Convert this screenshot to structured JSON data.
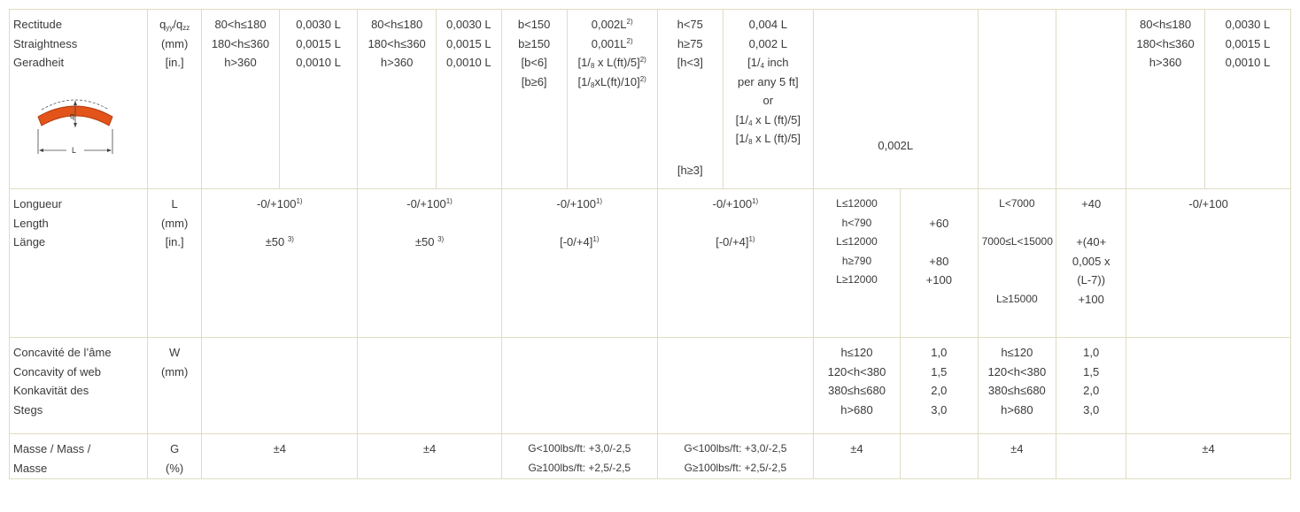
{
  "straightness": {
    "labels": [
      "Rectitude",
      "Straightness",
      "Geradheit"
    ],
    "symbol": "qyy/qzz",
    "symbol_main": "q",
    "symbol_sub1": "yy",
    "symbol_sub2": "zz",
    "units": [
      "(mm)",
      "[in.]"
    ],
    "diagram_q": "q",
    "diagram_L": "L",
    "g1_left": [
      "80<h≤180",
      "180<h≤360",
      "h>360"
    ],
    "g1_right": [
      "0,0030 L",
      "0,0015 L",
      "0,0010 L"
    ],
    "g2_left": [
      "80<h≤180",
      "180<h≤360",
      "h>360"
    ],
    "g2_right": [
      "0,0030 L",
      "0,0015 L",
      "0,0010 L"
    ],
    "g3_left": [
      "b<150",
      "b≥150",
      "[b<6]",
      "[b≥6]"
    ],
    "g3_right": {
      "a": "0,002L",
      "a_sup": "2)",
      "b": "0,001L",
      "b_sup": "2)",
      "c_pre": "[1/",
      "c_sub": "8",
      "c_mid": " x L(ft)/5]",
      "c_sup": "2)",
      "d_pre": "[1/",
      "d_sub": "8",
      "d_mid": "xL(ft)/10]",
      "d_sup": "2)"
    },
    "g4_left": [
      "h<75",
      "h≥75",
      "[h<3]",
      "[h≥3]"
    ],
    "g4_right": {
      "a": "0,004 L",
      "b": "0,002 L",
      "c_pre": "[1/",
      "c_sub": "4",
      "c_mid": " inch",
      "d": "per any 5 ft]",
      "e": "or",
      "f_pre": "[1/",
      "f_sub": "4",
      "f_mid": " x L (ft)/5]",
      "g_pre": "[1/",
      "g_sub": "8",
      "g_mid": " x L (ft)/5]"
    },
    "g5": "0,002L",
    "g7_left": [
      "80<h≤180",
      "180<h≤360",
      "h>360"
    ],
    "g7_right": [
      "0,0030 L",
      "0,0015 L",
      "0,0010 L"
    ]
  },
  "length": {
    "labels": [
      "Longueur",
      "Length",
      "Länge"
    ],
    "symbol": "L",
    "units": [
      "(mm)",
      "[in.]"
    ],
    "g1_top": "-0/+100",
    "g1_top_sup": "1)",
    "g1_bot": "±50",
    "g1_bot_sup": "3)",
    "g2_top": "-0/+100",
    "g2_top_sup": "1)",
    "g2_bot": "±50",
    "g2_bot_sup": "3)",
    "g3_top": "-0/+100",
    "g3_top_sup": "1)",
    "g3_bot": "[-0/+4]",
    "g3_bot_sup": "1)",
    "g4_top": "-0/+100",
    "g4_top_sup": "1)",
    "g4_bot": "[-0/+4]",
    "g4_bot_sup": "1)",
    "g5_left": [
      "L≤12000",
      "h<790",
      "L≤12000",
      "h≥790",
      "L≥12000"
    ],
    "g5_right": [
      "",
      "+60",
      "",
      "+80",
      "+100"
    ],
    "g6_left": [
      "L<7000",
      "",
      "7000≤L<15000",
      "",
      "",
      "L≥15000"
    ],
    "g6_right": [
      "+40",
      "",
      "+(40+",
      "0,005 x",
      "(L-7))",
      "+100"
    ],
    "g7": "-0/+100"
  },
  "concavity": {
    "labels": [
      "Concavité de l’âme",
      "Concavity of web",
      "Konkavität des",
      "Stegs"
    ],
    "symbol": "W",
    "units": [
      "(mm)"
    ],
    "g5_left": [
      "h≤120",
      "120<h<380",
      "380≤h≤680",
      "h>680"
    ],
    "g5_right": [
      "1,0",
      "1,5",
      "2,0",
      "3,0"
    ],
    "g6_left": [
      "h≤120",
      "120<h<380",
      "380≤h≤680",
      "h>680"
    ],
    "g6_right": [
      "1,0",
      "1,5",
      "2,0",
      "3,0"
    ]
  },
  "mass": {
    "labels": [
      "Masse / Mass /",
      "Masse"
    ],
    "symbol": "G",
    "units": [
      "(%)"
    ],
    "g1": "±4",
    "g2": "±4",
    "g3": [
      "G<100lbs/ft: +3,0/-2,5",
      "G≥100lbs/ft: +2,5/-2,5"
    ],
    "g4": [
      "G<100lbs/ft: +3,0/-2,5",
      "G≥100lbs/ft: +2,5/-2,5"
    ],
    "g5": "±4",
    "g6": "±4",
    "g7": "±4"
  },
  "colors": {
    "grid": "#dfdcc3",
    "text": "#3a3a3a",
    "diagram_fill": "#e2541a",
    "diagram_stroke": "#b13a0c"
  }
}
